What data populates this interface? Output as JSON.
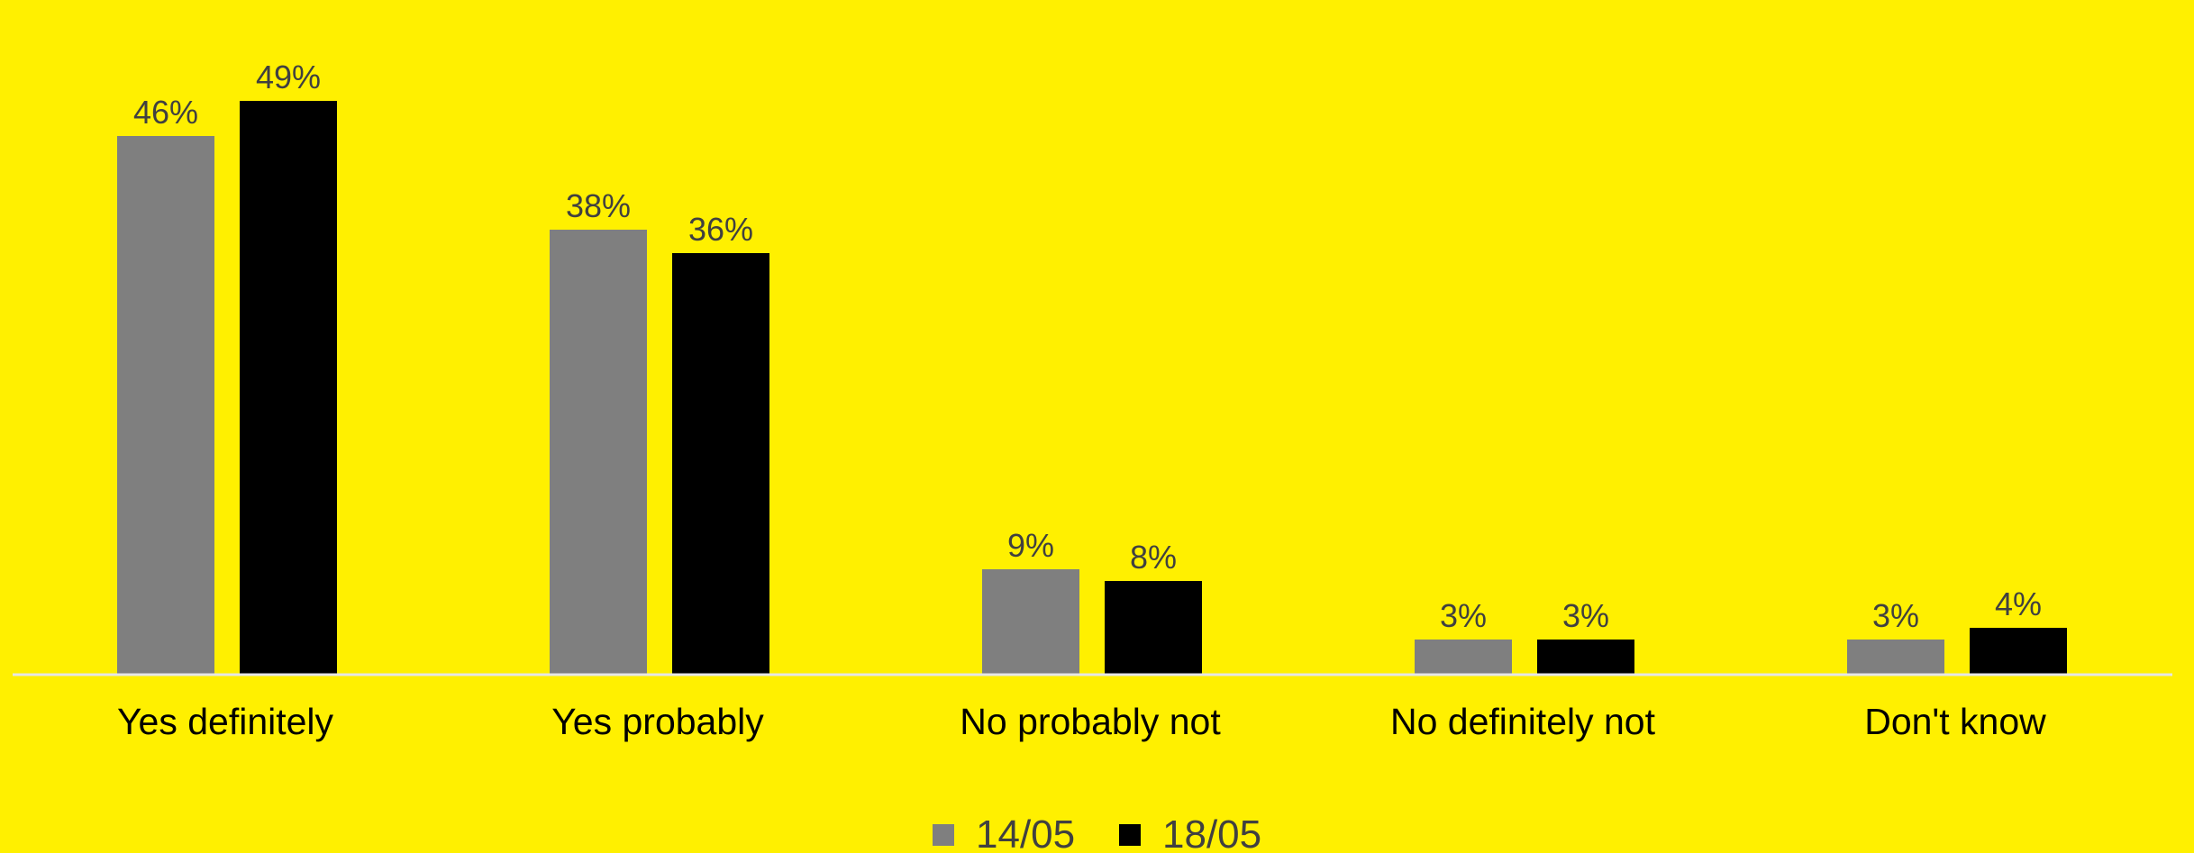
{
  "chart_data": {
    "type": "bar",
    "categories": [
      "Yes definitely",
      "Yes probably",
      "No probably not",
      "No definitely not",
      "Don't know"
    ],
    "series": [
      {
        "name": "14/05",
        "values": [
          46,
          38,
          9,
          3,
          3
        ],
        "labels": [
          "46%",
          "38%",
          "9%",
          "3%",
          "3%"
        ],
        "color": "#7F7F7F"
      },
      {
        "name": "18/05",
        "values": [
          49,
          36,
          8,
          3,
          4
        ],
        "labels": [
          "49%",
          "36%",
          "8%",
          "3%",
          "4%"
        ],
        "color": "#000000"
      }
    ],
    "ylim": [
      0,
      50
    ],
    "grid": false,
    "legend_position": "bottom",
    "colors": {
      "background": "#FFF000",
      "axis": "#E6E6E6"
    }
  }
}
